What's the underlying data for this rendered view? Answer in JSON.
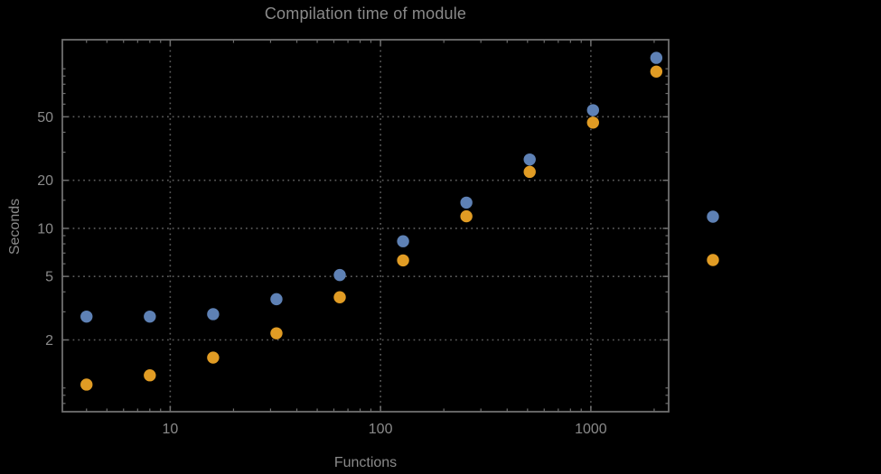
{
  "colors": {
    "background": "#000000",
    "frame": "#6f6f6f",
    "grid": "#5e5e5e",
    "tick": "#6f6f6f",
    "text": "#8a8a8a",
    "series1": "#5e81b5",
    "series2": "#e19c24"
  },
  "chart_data": {
    "type": "scatter",
    "title": "Compilation time of module",
    "xlabel": "Functions",
    "ylabel": "Seconds",
    "x_scale": "log",
    "y_scale": "log",
    "xlim": [
      3.07,
      2344
    ],
    "ylim": [
      0.71,
      152
    ],
    "grid": "dotted lines at labeled major ticks, frame on all four sides",
    "x": [
      4,
      8,
      16,
      32,
      64,
      128,
      256,
      512,
      1024,
      2048
    ],
    "series": [
      {
        "name": "blue",
        "color": "#5e81b5",
        "values": [
          2.8,
          2.8,
          2.9,
          3.6,
          5.1,
          8.3,
          14.5,
          27,
          55,
          117
        ]
      },
      {
        "name": "orange",
        "color": "#e19c24",
        "values": [
          1.05,
          1.2,
          1.55,
          2.2,
          3.7,
          6.3,
          11.9,
          22.6,
          46,
          96
        ]
      }
    ],
    "x_major_ticks": [
      {
        "value": 10,
        "label": "10"
      },
      {
        "value": 100,
        "label": "100"
      },
      {
        "value": 1000,
        "label": "1000"
      }
    ],
    "y_major_ticks": [
      {
        "value": 2,
        "label": "2"
      },
      {
        "value": 5,
        "label": "5"
      },
      {
        "value": 10,
        "label": "10"
      },
      {
        "value": 20,
        "label": "20"
      },
      {
        "value": 50,
        "label": "50"
      }
    ],
    "x_minor_ticks": [
      4,
      5,
      6,
      7,
      8,
      9,
      20,
      30,
      40,
      50,
      60,
      70,
      80,
      90,
      200,
      300,
      400,
      500,
      600,
      700,
      800,
      900,
      2000
    ],
    "y_minor_ticks": [
      0.8,
      0.9,
      1,
      3,
      4,
      6,
      7,
      8,
      9,
      15,
      30,
      40,
      60,
      70,
      80,
      90,
      100
    ],
    "legend": {
      "position": "right-outside",
      "entries": [
        {
          "series": "blue",
          "marker_color": "#5e81b5",
          "label": ""
        },
        {
          "series": "orange",
          "marker_color": "#e19c24",
          "label": ""
        }
      ]
    }
  }
}
